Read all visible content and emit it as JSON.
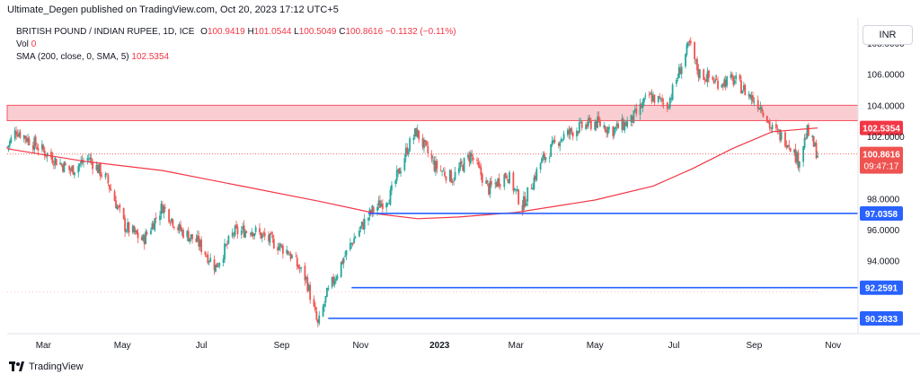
{
  "header": {
    "publisher": "Ultimate_Degen published on TradingView.com, Oct 20, 2023 17:12 UTC+5"
  },
  "legend": {
    "symbol_line": "BRITISH POUND / INDIAN RUPEE, 1D, ICE",
    "ohlc": {
      "o_label": "O",
      "o": "100.9419",
      "h_label": "H",
      "h": "101.0544",
      "l_label": "L",
      "l": "100.5049",
      "c_label": "C",
      "c": "100.8616",
      "change": "−0.1132 (−0.11%)"
    },
    "vol_label": "Vol",
    "vol_value": "0",
    "sma_label": "SMA (200, close, 0, SMA, 5)",
    "sma_value": "102.5354"
  },
  "currency": "INR",
  "footer": {
    "brand": "TradingView"
  },
  "colors": {
    "up": "#26a69a",
    "down": "#ef5350",
    "sma": "#f23645",
    "hline": "#2962ff",
    "zone_fill": "#f8c1c5",
    "zone_border": "#f23645"
  },
  "chart_data": {
    "type": "candlestick",
    "title": "BRITISH POUND / INDIAN RUPEE, 1D, ICE",
    "ylim": [
      89.3,
      109.5
    ],
    "y_ticks": [
      "108.0000",
      "106.0000",
      "104.0000",
      "102.0000",
      "98.0000",
      "96.0000",
      "94.0000"
    ],
    "x_ticks": [
      "Mar",
      "May",
      "Jul",
      "Sep",
      "Nov",
      "2023",
      "Mar",
      "May",
      "Jul",
      "Sep",
      "Nov"
    ],
    "time_range": [
      "2022-02-01",
      "2023-10-20"
    ],
    "close_path": [
      [
        "2022-02-01",
        101.3
      ],
      [
        "2022-02-08",
        102.4
      ],
      [
        "2022-02-22",
        101.5
      ],
      [
        "2022-03-08",
        100.6
      ],
      [
        "2022-03-22",
        99.8
      ],
      [
        "2022-04-05",
        100.6
      ],
      [
        "2022-04-19",
        99.2
      ],
      [
        "2022-05-03",
        96.2
      ],
      [
        "2022-05-17",
        95.3
      ],
      [
        "2022-06-01",
        97.5
      ],
      [
        "2022-06-14",
        96.0
      ],
      [
        "2022-06-28",
        95.2
      ],
      [
        "2022-07-12",
        93.6
      ],
      [
        "2022-07-26",
        95.8
      ],
      [
        "2022-08-09",
        96.0
      ],
      [
        "2022-08-23",
        95.3
      ],
      [
        "2022-09-06",
        94.6
      ],
      [
        "2022-09-20",
        92.8
      ],
      [
        "2022-09-29",
        89.8
      ],
      [
        "2022-10-06",
        91.8
      ],
      [
        "2022-10-18",
        94.0
      ],
      [
        "2022-10-28",
        95.6
      ],
      [
        "2022-11-10",
        97.2
      ],
      [
        "2022-11-24",
        98.2
      ],
      [
        "2022-12-07",
        101.2
      ],
      [
        "2022-12-14",
        102.3
      ],
      [
        "2022-12-28",
        100.1
      ],
      [
        "2023-01-11",
        99.3
      ],
      [
        "2023-01-25",
        100.8
      ],
      [
        "2023-02-08",
        98.6
      ],
      [
        "2023-02-22",
        99.6
      ],
      [
        "2023-03-06",
        97.5
      ],
      [
        "2023-03-20",
        100.3
      ],
      [
        "2023-04-03",
        101.8
      ],
      [
        "2023-04-17",
        102.5
      ],
      [
        "2023-05-01",
        102.9
      ],
      [
        "2023-05-15",
        102.4
      ],
      [
        "2023-05-29",
        103.0
      ],
      [
        "2023-06-12",
        104.6
      ],
      [
        "2023-06-26",
        104.0
      ],
      [
        "2023-07-07",
        106.6
      ],
      [
        "2023-07-13",
        107.9
      ],
      [
        "2023-07-20",
        106.1
      ],
      [
        "2023-08-03",
        105.5
      ],
      [
        "2023-08-17",
        105.6
      ],
      [
        "2023-08-31",
        104.4
      ],
      [
        "2023-09-07",
        103.9
      ],
      [
        "2023-09-14",
        102.5
      ],
      [
        "2023-09-28",
        101.6
      ],
      [
        "2023-10-05",
        100.4
      ],
      [
        "2023-10-12",
        102.3
      ],
      [
        "2023-10-20",
        100.86
      ]
    ],
    "sma_200": {
      "name": "SMA (200, close, 0, SMA, 5)",
      "points": [
        [
          "2022-02-01",
          101.2
        ],
        [
          "2022-04-01",
          100.4
        ],
        [
          "2022-06-01",
          99.8
        ],
        [
          "2022-08-01",
          98.8
        ],
        [
          "2022-10-01",
          97.8
        ],
        [
          "2022-11-15",
          97.0
        ],
        [
          "2022-12-15",
          96.7
        ],
        [
          "2023-01-15",
          96.8
        ],
        [
          "2023-03-01",
          97.1
        ],
        [
          "2023-05-01",
          97.9
        ],
        [
          "2023-06-15",
          98.8
        ],
        [
          "2023-07-15",
          99.9
        ],
        [
          "2023-08-15",
          101.2
        ],
        [
          "2023-09-15",
          102.3
        ],
        [
          "2023-10-20",
          102.5354
        ]
      ]
    },
    "resistance_zone": {
      "from": 103.0,
      "to": 104.0
    },
    "horizontal_levels": [
      {
        "value": 97.0358,
        "label": "97.0358",
        "start": "2022-11-07"
      },
      {
        "value": 92.2591,
        "label": "92.2591",
        "start": "2022-10-25"
      },
      {
        "value": 90.2833,
        "label": "90.2833",
        "start": "2022-10-07"
      }
    ],
    "current_close": {
      "value": 100.8616,
      "label": "100.8616",
      "countdown": "09:47:17"
    },
    "sma_label": {
      "value": 102.5354,
      "label": "102.5354"
    }
  }
}
